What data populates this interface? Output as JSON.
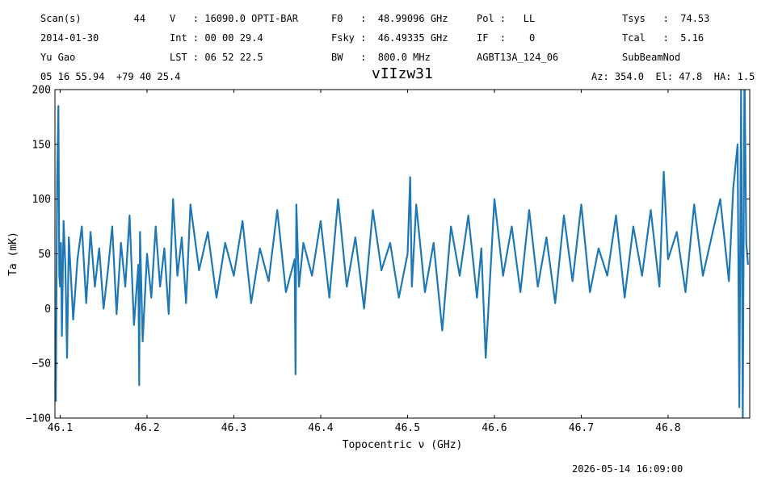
{
  "header": {
    "row1": [
      {
        "id": "scan",
        "text": "Scan(s)         44"
      },
      {
        "id": "velocity",
        "text": "V   : 16090.0 OPTI-BAR"
      },
      {
        "id": "f0",
        "text": "F0   :  48.99096 GHz"
      },
      {
        "id": "pol",
        "text": "Pol :   LL"
      },
      {
        "id": "tsys",
        "text": "Tsys   :  74.53"
      }
    ],
    "row2": [
      {
        "id": "date",
        "text": "2014-01-30"
      },
      {
        "id": "int",
        "text": "Int : 00 00 29.4"
      },
      {
        "id": "fsky",
        "text": "Fsky :  46.49335 GHz"
      },
      {
        "id": "if",
        "text": "IF  :    0"
      },
      {
        "id": "tcal",
        "text": "Tcal   :  5.16"
      }
    ],
    "row3": [
      {
        "id": "observer",
        "text": "Yu Gao"
      },
      {
        "id": "lst",
        "text": "LST : 06 52 22.5"
      },
      {
        "id": "bw",
        "text": "BW   :  800.0 MHz"
      },
      {
        "id": "project",
        "text": "AGBT13A_124_06"
      },
      {
        "id": "procedure",
        "text": "SubBeamNod"
      }
    ],
    "coords": "05 16 55.94  +79 40 25.4",
    "azel": "Az: 354.0  El: 47.8  HA: 1.5"
  },
  "timestamp": "2026-05-14 16:09:00",
  "colors": {
    "line": "#1f77b4",
    "axes": "#000000"
  },
  "chart_data": {
    "type": "line",
    "title": "vIIzw31",
    "xlabel": "Topocentric ν (GHz)",
    "ylabel": "Ta (mK)",
    "xlim": [
      46.094,
      46.894
    ],
    "ylim": [
      -100,
      200
    ],
    "xticks": [
      46.1,
      46.2,
      46.3,
      46.4,
      46.5,
      46.6,
      46.7,
      46.8
    ],
    "yticks": [
      -100,
      -50,
      0,
      50,
      100,
      150,
      200
    ],
    "grid": false,
    "series": [
      {
        "x": [
          46.095,
          46.0965,
          46.098,
          46.099,
          46.1,
          46.101,
          46.102,
          46.104,
          46.106,
          46.108,
          46.11,
          46.115,
          46.12,
          46.125,
          46.13,
          46.135,
          46.14,
          46.145,
          46.15,
          46.155,
          46.16,
          46.165,
          46.17,
          46.175,
          46.18,
          46.185,
          46.19,
          46.191,
          46.192,
          46.195,
          46.2,
          46.205,
          46.21,
          46.215,
          46.22,
          46.225,
          46.23,
          46.235,
          46.24,
          46.245,
          46.25,
          46.26,
          46.27,
          46.28,
          46.29,
          46.3,
          46.31,
          46.32,
          46.33,
          46.34,
          46.35,
          46.36,
          46.37,
          46.371,
          46.372,
          46.375,
          46.38,
          46.39,
          46.4,
          46.41,
          46.42,
          46.43,
          46.44,
          46.45,
          46.46,
          46.47,
          46.48,
          46.49,
          46.5,
          46.503,
          46.505,
          46.51,
          46.52,
          46.53,
          46.54,
          46.55,
          46.56,
          46.57,
          46.58,
          46.585,
          46.59,
          46.6,
          46.61,
          46.62,
          46.63,
          46.64,
          46.65,
          46.66,
          46.67,
          46.68,
          46.69,
          46.7,
          46.71,
          46.72,
          46.73,
          46.74,
          46.75,
          46.76,
          46.77,
          46.78,
          46.79,
          46.795,
          46.8,
          46.81,
          46.82,
          46.83,
          46.84,
          46.85,
          46.86,
          46.87,
          46.875,
          46.88,
          46.882,
          46.884,
          46.886,
          46.888,
          46.89,
          46.892
        ],
        "y": [
          -85,
          118,
          185,
          30,
          20,
          60,
          -25,
          80,
          40,
          -45,
          65,
          -10,
          45,
          75,
          5,
          70,
          20,
          55,
          0,
          35,
          75,
          -5,
          60,
          20,
          85,
          -15,
          40,
          -70,
          70,
          -30,
          50,
          10,
          75,
          20,
          55,
          -5,
          100,
          30,
          65,
          5,
          95,
          35,
          70,
          10,
          60,
          30,
          80,
          5,
          55,
          25,
          90,
          15,
          45,
          -60,
          95,
          20,
          60,
          30,
          80,
          10,
          100,
          20,
          65,
          0,
          90,
          35,
          60,
          10,
          50,
          120,
          20,
          95,
          15,
          60,
          -20,
          75,
          30,
          85,
          10,
          55,
          -45,
          100,
          30,
          75,
          15,
          90,
          20,
          65,
          5,
          85,
          25,
          95,
          15,
          55,
          30,
          85,
          10,
          75,
          30,
          90,
          20,
          125,
          45,
          70,
          15,
          95,
          30,
          65,
          100,
          25,
          110,
          150,
          -90,
          200,
          -100,
          220,
          60,
          40
        ]
      }
    ]
  }
}
